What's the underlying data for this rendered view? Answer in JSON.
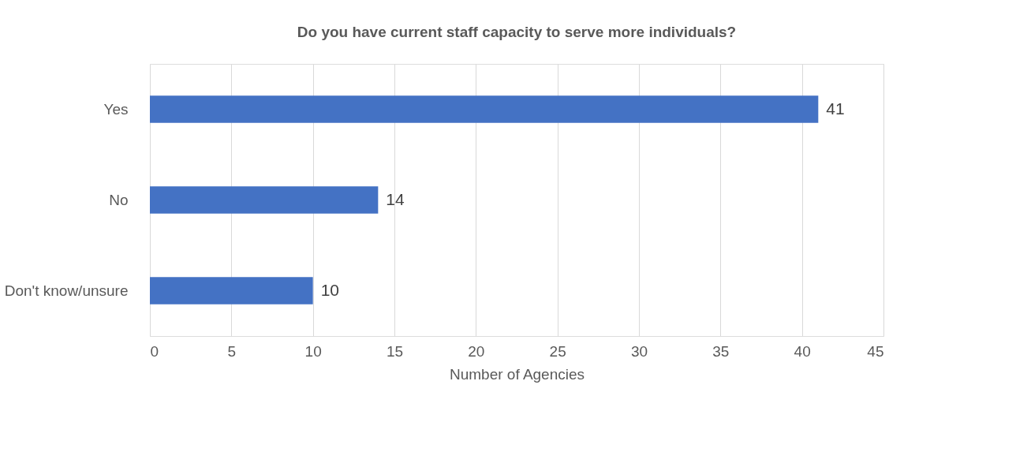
{
  "chart_data": {
    "type": "bar",
    "orientation": "horizontal",
    "title": "Do you have current staff capacity to serve more individuals?",
    "categories": [
      "Yes",
      "No",
      "Don't know/unsure"
    ],
    "values": [
      41,
      14,
      10
    ],
    "color": "#4472c4",
    "xlabel": "Number of Agencies",
    "xlim": [
      0,
      45
    ],
    "xticks": [
      0,
      5,
      10,
      15,
      20,
      25,
      30,
      35,
      40,
      45
    ],
    "grid": "x",
    "data_labels": true
  }
}
